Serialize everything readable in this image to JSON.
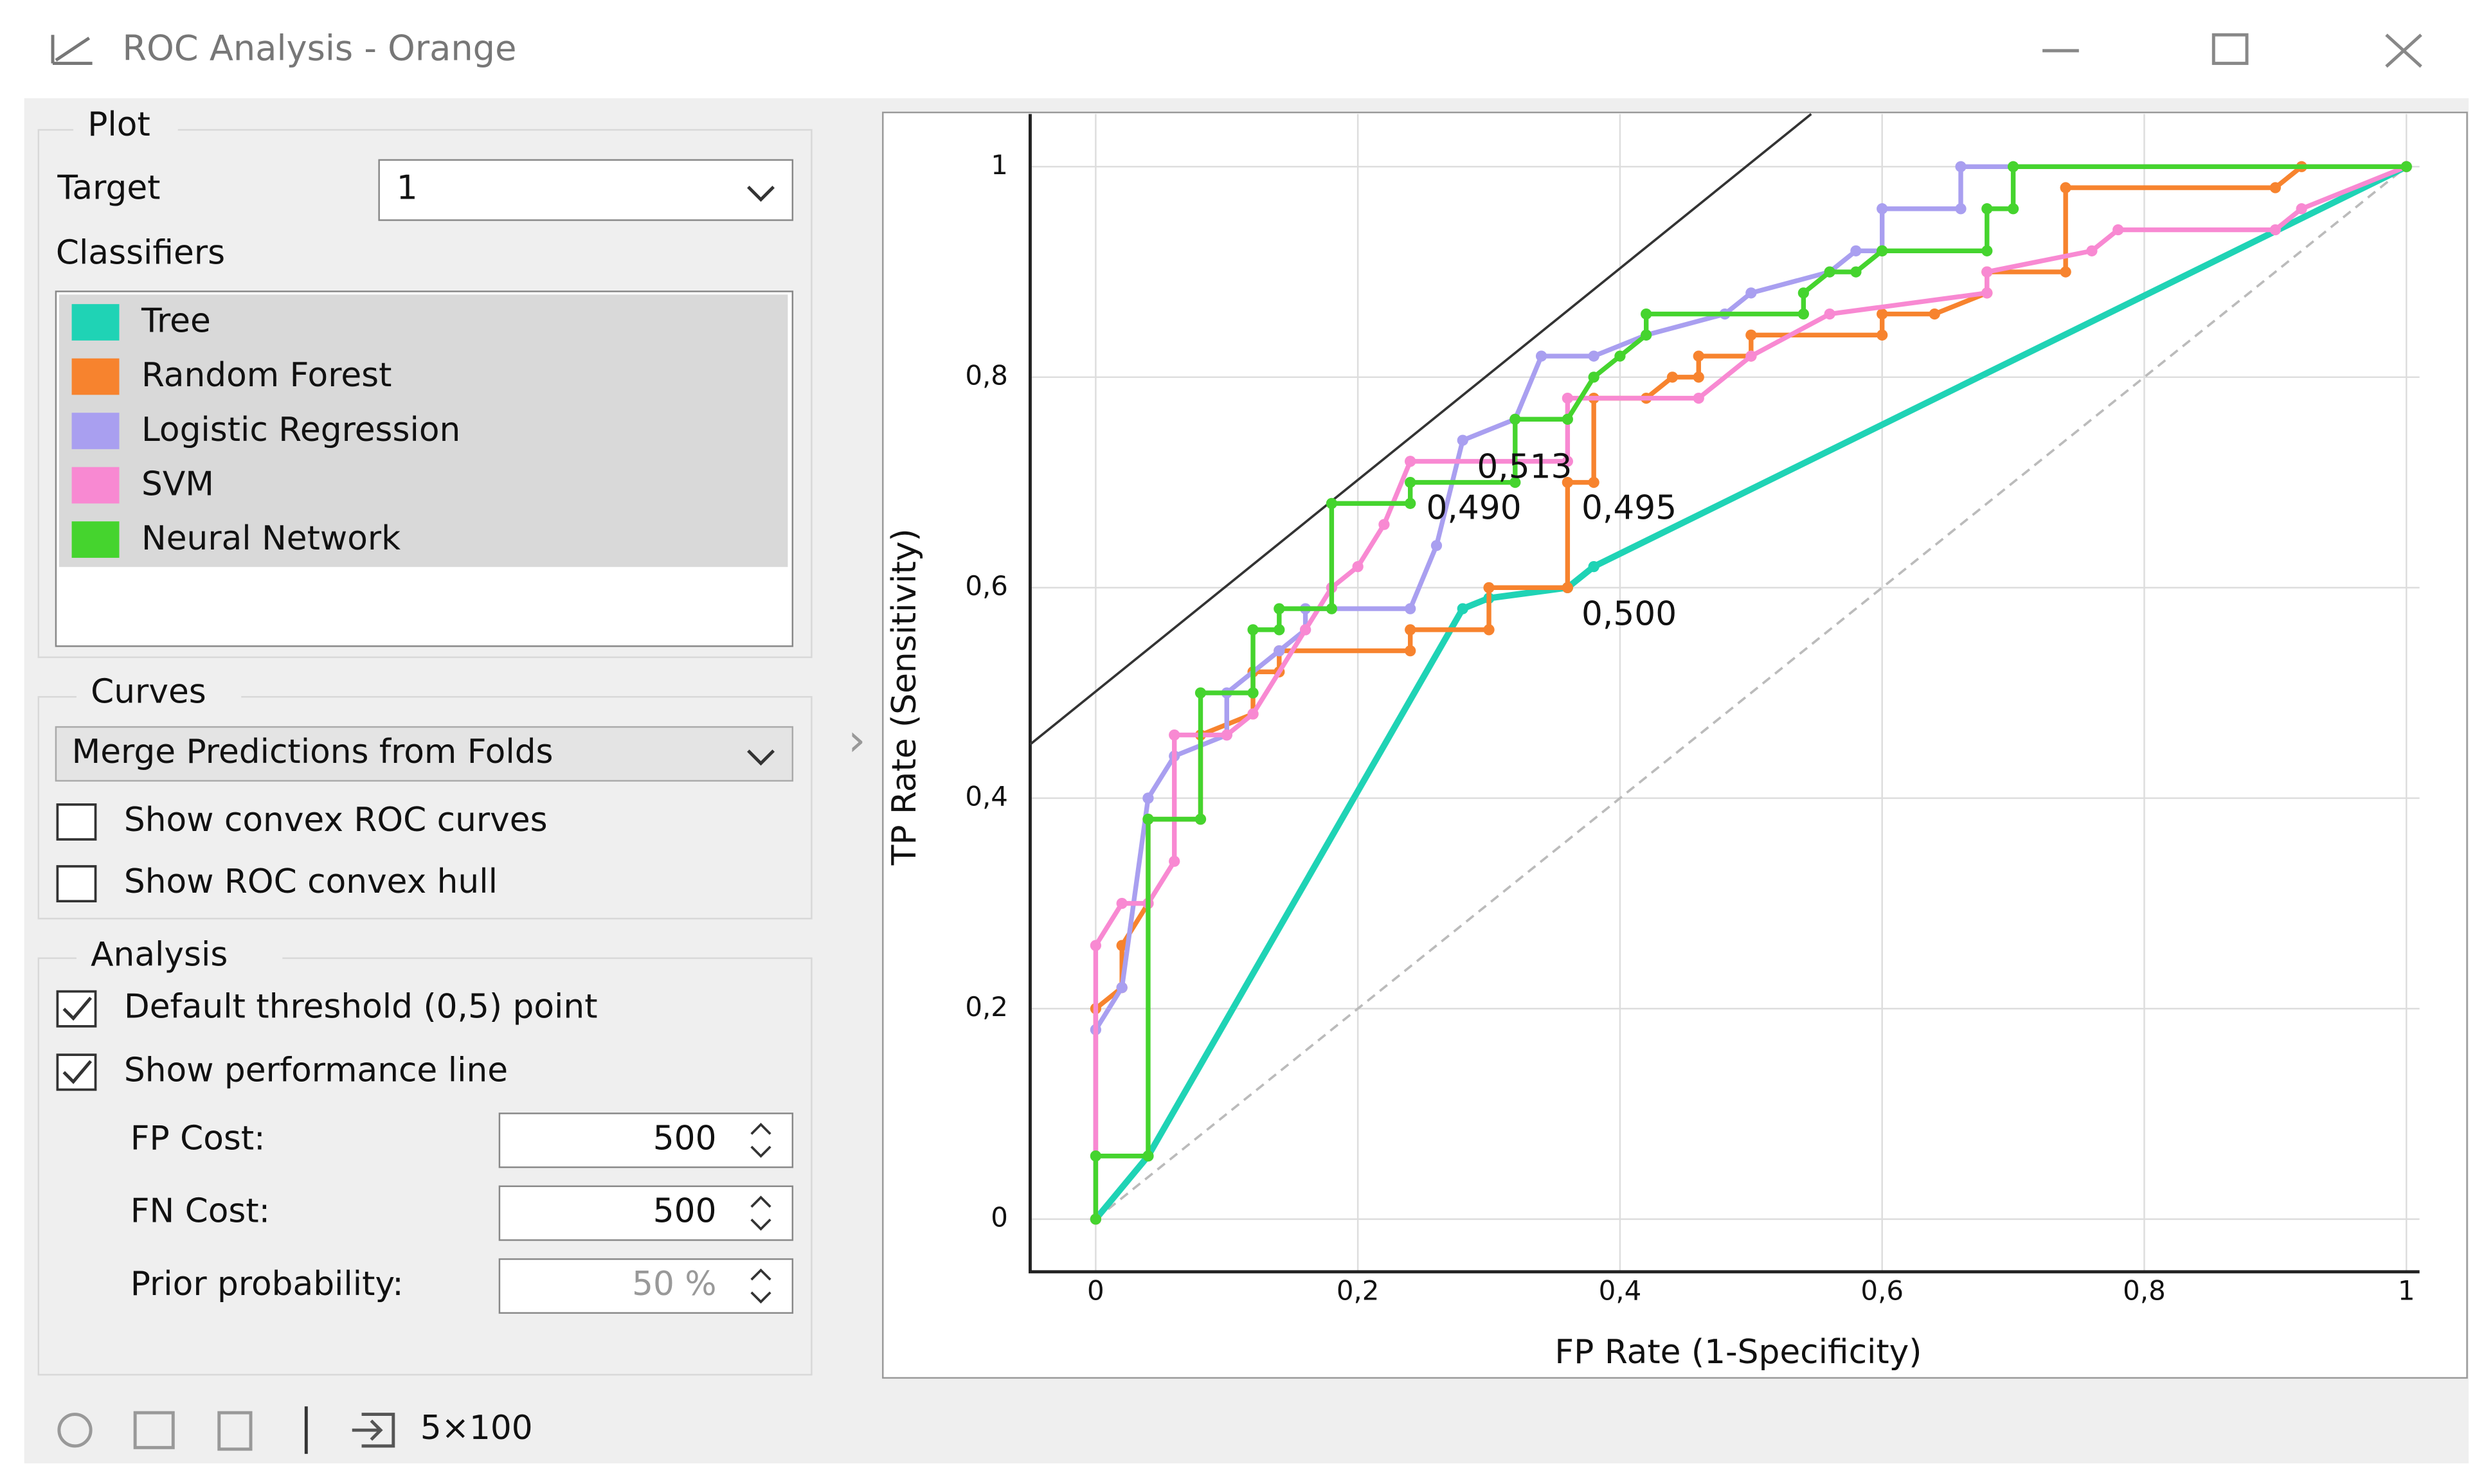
{
  "window": {
    "title": "ROC Analysis - Orange"
  },
  "controls": {
    "plot": {
      "heading": "Plot",
      "target_label": "Target",
      "target_value": "1",
      "classifiers_label": "Classifiers"
    },
    "curves": {
      "heading": "Curves",
      "mode": "Merge Predictions from Folds",
      "options": [
        {
          "label": "Show convex ROC curves",
          "checked": false
        },
        {
          "label": "Show ROC convex hull",
          "checked": false
        }
      ]
    },
    "analysis": {
      "heading": "Analysis",
      "options": [
        {
          "label": "Default threshold (0,5) point",
          "checked": true
        },
        {
          "label": "Show performance line",
          "checked": true
        }
      ],
      "fields": [
        {
          "label": "FP Cost:",
          "value": 500
        },
        {
          "label": "FN Cost:",
          "value": 500
        },
        {
          "label": "Prior probability:",
          "value": "50 %"
        }
      ]
    }
  },
  "status": {
    "data_size": "5×100"
  },
  "chart_data": {
    "type": "line",
    "xlabel": "FP Rate (1-Specificity)",
    "ylabel": "TP Rate (Sensitivity)",
    "xlim": [
      -0.05,
      1.01
    ],
    "ylim": [
      -0.05,
      1.05
    ],
    "xticks": [
      0,
      {
        "value": 0.2,
        "label": "0,2"
      },
      {
        "value": 0.4,
        "label": "0,4"
      },
      {
        "value": 0.6,
        "label": "0,6"
      },
      {
        "value": 0.8,
        "label": "0,8"
      },
      1
    ],
    "yticks": [
      0,
      {
        "value": 0.2,
        "label": "0,2"
      },
      {
        "value": 0.4,
        "label": "0,4"
      },
      {
        "value": 0.6,
        "label": "0,6"
      },
      {
        "value": 0.8,
        "label": "0,8"
      },
      1
    ],
    "grid": true,
    "series": [
      {
        "name": "Tree",
        "color": "#1fd3b5",
        "x": [
          0,
          0.04,
          0.28,
          0.3,
          0.36,
          0.38,
          1
        ],
        "values": [
          0,
          0.06,
          0.58,
          0.59,
          0.6,
          0.62,
          1
        ]
      },
      {
        "name": "Random Forest",
        "color": "#f7832e",
        "x": [
          0,
          0,
          0.02,
          0.02,
          0.04,
          0.04,
          0.08,
          0.08,
          0.12,
          0.12,
          0.14,
          0.14,
          0.24,
          0.24,
          0.3,
          0.3,
          0.36,
          0.36,
          0.38,
          0.38,
          0.42,
          0.44,
          0.46,
          0.46,
          0.5,
          0.5,
          0.6,
          0.6,
          0.64,
          0.68,
          0.68,
          0.74,
          0.74,
          0.9,
          0.92,
          1
        ],
        "values": [
          0,
          0.2,
          0.22,
          0.26,
          0.3,
          0.38,
          0.38,
          0.46,
          0.48,
          0.52,
          0.52,
          0.54,
          0.54,
          0.56,
          0.56,
          0.6,
          0.6,
          0.7,
          0.7,
          0.78,
          0.78,
          0.8,
          0.8,
          0.82,
          0.82,
          0.84,
          0.84,
          0.86,
          0.86,
          0.88,
          0.9,
          0.9,
          0.98,
          0.98,
          1,
          1
        ]
      },
      {
        "name": "Logistic Regression",
        "color": "#a99ff0",
        "x": [
          0,
          0,
          0.02,
          0.04,
          0.04,
          0.06,
          0.1,
          0.1,
          0.14,
          0.16,
          0.16,
          0.24,
          0.26,
          0.28,
          0.32,
          0.34,
          0.38,
          0.42,
          0.48,
          0.5,
          0.56,
          0.58,
          0.6,
          0.6,
          0.66,
          0.66,
          1
        ],
        "values": [
          0,
          0.18,
          0.22,
          0.4,
          0.4,
          0.44,
          0.46,
          0.5,
          0.54,
          0.56,
          0.58,
          0.58,
          0.64,
          0.74,
          0.76,
          0.82,
          0.82,
          0.84,
          0.86,
          0.88,
          0.9,
          0.92,
          0.92,
          0.96,
          0.96,
          1,
          1
        ]
      },
      {
        "name": "SVM",
        "color": "#f889d2",
        "x": [
          0,
          0,
          0.02,
          0.04,
          0.06,
          0.06,
          0.1,
          0.12,
          0.16,
          0.18,
          0.2,
          0.22,
          0.24,
          0.24,
          0.36,
          0.36,
          0.46,
          0.5,
          0.56,
          0.68,
          0.68,
          0.76,
          0.78,
          0.9,
          0.92,
          1
        ],
        "values": [
          0,
          0.26,
          0.3,
          0.3,
          0.34,
          0.46,
          0.46,
          0.48,
          0.56,
          0.6,
          0.62,
          0.66,
          0.72,
          0.72,
          0.72,
          0.78,
          0.78,
          0.82,
          0.86,
          0.88,
          0.9,
          0.92,
          0.94,
          0.94,
          0.96,
          1
        ]
      },
      {
        "name": "Neural Network",
        "color": "#45d42e",
        "x": [
          0,
          0,
          0.04,
          0.04,
          0.08,
          0.08,
          0.12,
          0.12,
          0.14,
          0.14,
          0.18,
          0.18,
          0.24,
          0.24,
          0.32,
          0.32,
          0.36,
          0.38,
          0.4,
          0.42,
          0.42,
          0.54,
          0.54,
          0.56,
          0.58,
          0.6,
          0.6,
          0.68,
          0.68,
          0.7,
          0.7,
          1
        ],
        "values": [
          0,
          0.06,
          0.06,
          0.38,
          0.38,
          0.5,
          0.5,
          0.56,
          0.56,
          0.58,
          0.58,
          0.68,
          0.68,
          0.7,
          0.7,
          0.76,
          0.76,
          0.8,
          0.82,
          0.84,
          0.86,
          0.86,
          0.88,
          0.9,
          0.9,
          0.92,
          0.92,
          0.92,
          0.96,
          0.96,
          1,
          1
        ]
      }
    ],
    "annotations": [
      "0,513",
      "0,490",
      "0,495",
      "0,500"
    ]
  }
}
